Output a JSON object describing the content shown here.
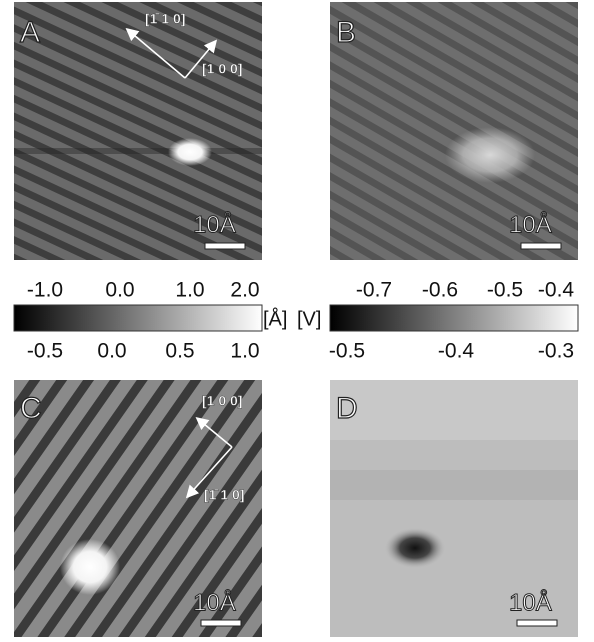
{
  "panels": [
    {
      "label": "A",
      "scale": "10Å",
      "directions": [
        "[1̄ 1 0]",
        "[1 0 0]"
      ]
    },
    {
      "label": "B",
      "scale": "10Å"
    },
    {
      "label": "C",
      "scale": "10Å",
      "directions": [
        "[1 0 0]",
        "[1̄ 1 0]"
      ]
    },
    {
      "label": "D",
      "scale": "10Å"
    }
  ],
  "colorbars": [
    {
      "top_ticks": [
        "-1.0",
        "0.0",
        "1.0",
        "2.0"
      ],
      "bottom_ticks": [
        "-0.5",
        "0.0",
        "0.5",
        "1.0"
      ],
      "unit": "[Å]"
    },
    {
      "top_ticks": [
        "-0.7",
        "-0.6",
        "-0.5",
        "-0.4"
      ],
      "bottom_ticks": [
        "-0.5",
        "-0.4",
        "-0.3"
      ],
      "unit": "[V]"
    }
  ]
}
